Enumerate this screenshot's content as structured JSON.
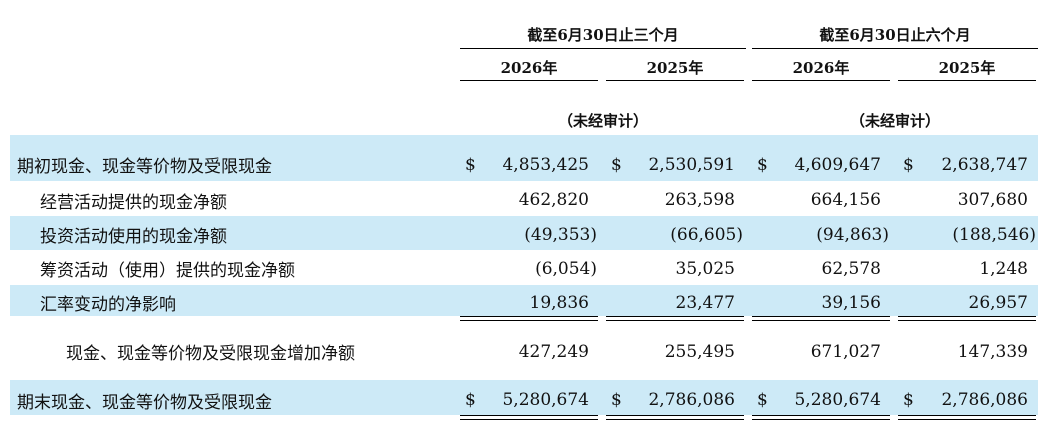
{
  "header": {
    "group1": "截至6月30日止三个月",
    "group2": "截至6月30日止六个月",
    "years": [
      "2026年",
      "2025年",
      "2026年",
      "2025年"
    ],
    "unaudited1": "（未经审计）",
    "unaudited2": "（未经审计）"
  },
  "currency_symbol": "$",
  "rows": [
    {
      "label": "期初现金、现金等价物及受限现金",
      "values": [
        "4,853,425",
        "2,530,591",
        "4,609,647",
        "2,638,747"
      ]
    },
    {
      "label": "经营活动提供的现金净额",
      "values": [
        "462,820",
        "263,598",
        "664,156",
        "307,680"
      ]
    },
    {
      "label": "投资活动使用的现金净额",
      "values": [
        "(49,353)",
        "(66,605)",
        "(94,863)",
        "(188,546)"
      ]
    },
    {
      "label": "筹资活动（使用）提供的现金净额",
      "values": [
        "(6,054)",
        "35,025",
        "62,578",
        "1,248"
      ]
    },
    {
      "label": "汇率变动的净影响",
      "values": [
        "19,836",
        "23,477",
        "39,156",
        "26,957"
      ]
    },
    {
      "label": "现金、现金等价物及受限现金增加净额",
      "values": [
        "427,249",
        "255,495",
        "671,027",
        "147,339"
      ]
    },
    {
      "label": "期末现金、现金等价物及受限现金",
      "values": [
        "5,280,674",
        "2,786,086",
        "5,280,674",
        "2,786,086"
      ]
    }
  ]
}
